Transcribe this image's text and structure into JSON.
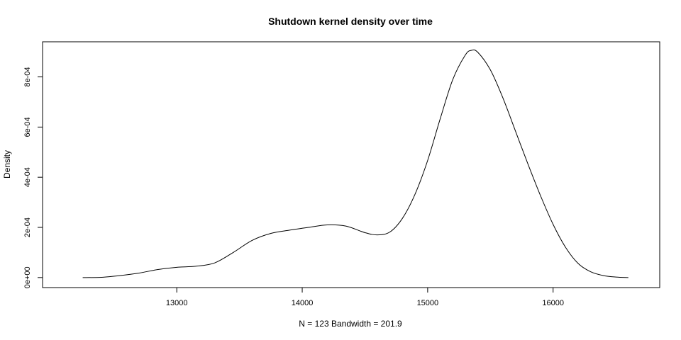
{
  "chart_data": {
    "type": "line",
    "title": "Shutdown kernel density over time",
    "xlabel": "N = 123   Bandwidth = 201.9",
    "ylabel": "Density",
    "xlim": [
      11930,
      16850
    ],
    "ylim": [
      -4e-05,
      0.00094
    ],
    "xticks": [
      13000,
      14000,
      15000,
      16000
    ],
    "xtick_labels": [
      "13000",
      "14000",
      "15000",
      "16000"
    ],
    "yticks": [
      0,
      0.0002,
      0.0004,
      0.0006,
      0.0008
    ],
    "ytick_labels": [
      "0e+00",
      "2e-04",
      "4e-04",
      "6e-04",
      "8e-04"
    ],
    "grid": false,
    "series": [
      {
        "x": [
          12250,
          12400,
          12550,
          12700,
          12850,
          13000,
          13150,
          13300,
          13450,
          13600,
          13750,
          13900,
          14050,
          14200,
          14350,
          14500,
          14600,
          14700,
          14800,
          14900,
          15000,
          15100,
          15200,
          15300,
          15350,
          15400,
          15500,
          15600,
          15700,
          15800,
          15900,
          16000,
          16100,
          16200,
          16300,
          16400,
          16500,
          16600
        ],
        "y": [
          0.0,
          1e-06,
          8e-06,
          1.8e-05,
          3.2e-05,
          4.1e-05,
          4.5e-05,
          5.8e-05,
          0.0001,
          0.000148,
          0.000176,
          0.000189,
          0.0002,
          0.00021,
          0.000205,
          0.000179,
          0.00017,
          0.000182,
          0.000237,
          0.000333,
          0.000467,
          0.000633,
          0.000789,
          0.000887,
          0.000906,
          0.000898,
          0.000828,
          0.000716,
          0.000584,
          0.000452,
          0.000326,
          0.000212,
          0.00012,
          5.6e-05,
          2.3e-05,
          8e-06,
          2e-06,
          0.0
        ]
      }
    ]
  }
}
